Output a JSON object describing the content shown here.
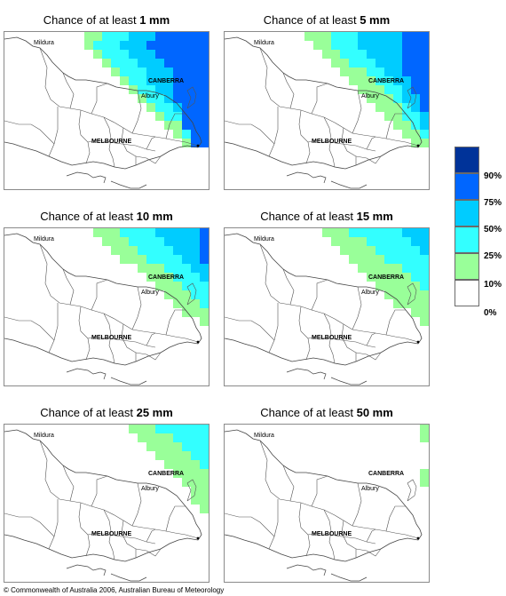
{
  "panels": [
    {
      "title_prefix": "Chance of at least",
      "amount": "1 mm"
    },
    {
      "title_prefix": "Chance of at least",
      "amount": "5 mm"
    },
    {
      "title_prefix": "Chance of at least",
      "amount": "10 mm"
    },
    {
      "title_prefix": "Chance of at least",
      "amount": "15 mm"
    },
    {
      "title_prefix": "Chance of at least",
      "amount": "25 mm"
    },
    {
      "title_prefix": "Chance of at least",
      "amount": "50 mm"
    }
  ],
  "towns": {
    "mildura": "Mildura",
    "canberra": "CANBERRA",
    "albury": "Albury",
    "melbourne": "MELBOURNE"
  },
  "legend": {
    "items": [
      {
        "label": "90%",
        "color": "#003399"
      },
      {
        "label": "75%",
        "color": "#0066ff"
      },
      {
        "label": "50%",
        "color": "#00ccff"
      },
      {
        "label": "25%",
        "color": "#33ffff"
      },
      {
        "label": "10%",
        "color": "#99ff99"
      },
      {
        "label": "0%",
        "color": "#ffffff"
      }
    ]
  },
  "copyright": "© Commonwealth of Australia 2006, Australian Bureau of Meteorology"
}
